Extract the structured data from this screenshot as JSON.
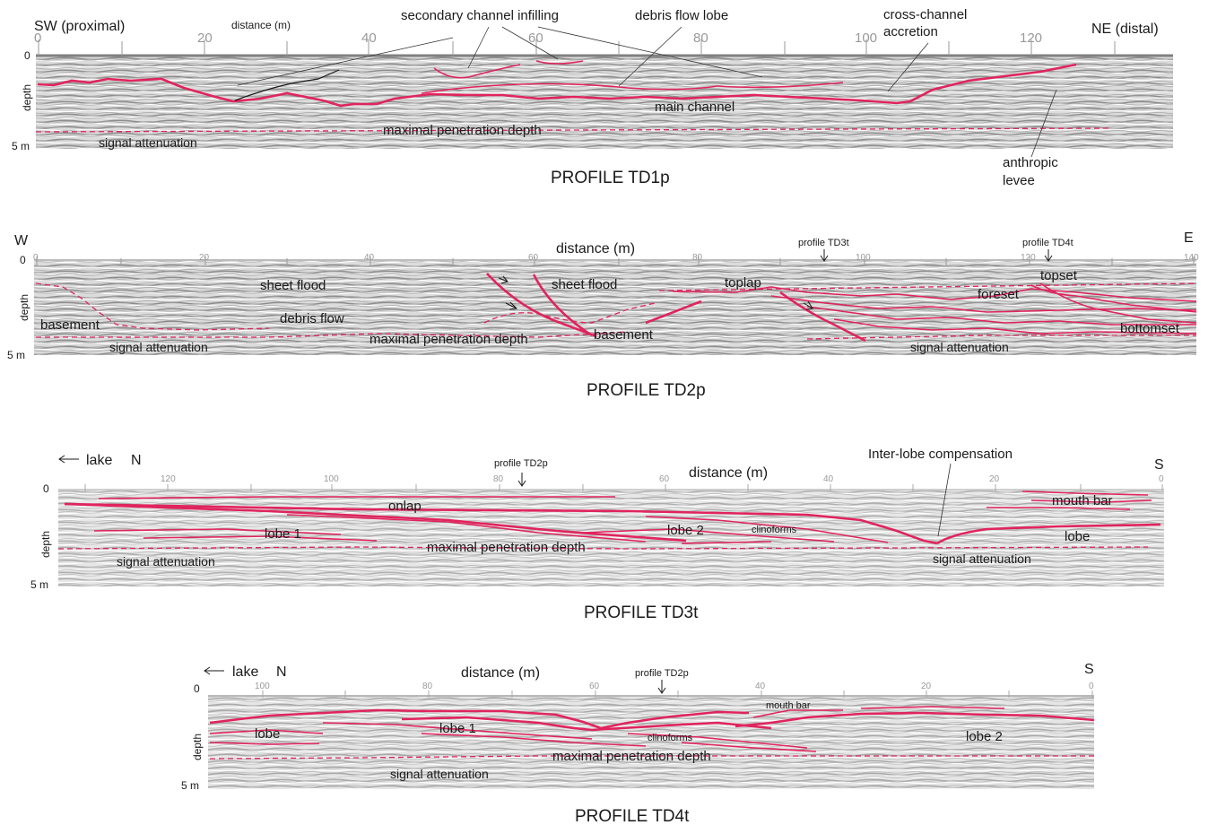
{
  "colors": {
    "interpretation_line": "#e0245e",
    "axis_tick": "#999999",
    "radargram_bg": "#d9d9d9"
  },
  "profiles": [
    {
      "id": "td1p",
      "title": "PROFILE TD1p",
      "left_label": "SW (proximal)",
      "right_label": "NE (distal)",
      "axis_label": "distance (m)",
      "ticks": [
        "0",
        "20",
        "40",
        "60",
        "80",
        "100",
        "120"
      ],
      "depth_top": "0",
      "depth_label": "depth",
      "depth_bottom": "5 m",
      "annotations": {
        "secondary_channel": "secondary channel infilling",
        "debris_flow_lobe": "debris flow lobe",
        "cross_channel_1": "cross-channel",
        "cross_channel_2": "accretion",
        "main_channel": "main channel",
        "max_penetration": "maximal penetration depth",
        "signal_attenuation": "signal attenuation",
        "anthropic_1": "anthropic",
        "anthropic_2": "levee"
      }
    },
    {
      "id": "td2p",
      "title": "PROFILE TD2p",
      "left_label": "W",
      "right_label": "E",
      "axis_label": "distance (m)",
      "ticks": [
        "0",
        "20",
        "40",
        "60",
        "80",
        "100",
        "120",
        "140"
      ],
      "depth_top": "0",
      "depth_label": "depth",
      "depth_bottom": "5 m",
      "markers": [
        "profile TD3t",
        "profile TD4t"
      ],
      "annotations": {
        "sheet_flood_1": "sheet flood",
        "sheet_flood_2": "sheet flood",
        "debris_flow": "debris flow",
        "basement_1": "basement",
        "basement_2": "basement",
        "toplap": "toplap",
        "topset": "topset",
        "foreset": "foreset",
        "bottomset": "bottomset",
        "max_penetration": "maximal penetration depth",
        "signal_attenuation_1": "signal attenuation",
        "signal_attenuation_2": "signal attenuation"
      }
    },
    {
      "id": "td3t",
      "title": "PROFILE TD3t",
      "left_label": "lake",
      "left_dir": "N",
      "right_label": "S",
      "axis_label": "distance (m)",
      "ticks": [
        "120",
        "100",
        "80",
        "60",
        "40",
        "20",
        "0"
      ],
      "depth_top": "0",
      "depth_label": "depth",
      "depth_bottom": "5 m",
      "markers": [
        "profile TD2p"
      ],
      "annotations": {
        "inter_lobe": "Inter-lobe compensation",
        "mouth_bar": "mouth bar",
        "onlap": "onlap",
        "lobe_1": "lobe 1",
        "lobe_2": "lobe 2",
        "clinoforms": "clinoforms",
        "lobe": "lobe",
        "max_penetration": "maximal penetration depth",
        "signal_attenuation_1": "signal attenuation",
        "signal_attenuation_2": "signal attenuation"
      }
    },
    {
      "id": "td4t",
      "title": "PROFILE TD4t",
      "left_label": "lake",
      "left_dir": "N",
      "right_label": "S",
      "axis_label": "distance (m)",
      "ticks": [
        "100",
        "80",
        "60",
        "40",
        "20",
        "0"
      ],
      "depth_top": "0",
      "depth_label": "depth",
      "depth_bottom": "5 m",
      "markers": [
        "profile TD2p"
      ],
      "annotations": {
        "mouth_bar": "mouth bar",
        "lobe": "lobe",
        "lobe_1": "lobe 1",
        "clinoforms": "clinoforms",
        "lobe_2": "lobe 2",
        "max_penetration": "maximal penetration depth",
        "signal_attenuation": "signal attenuation"
      }
    }
  ]
}
